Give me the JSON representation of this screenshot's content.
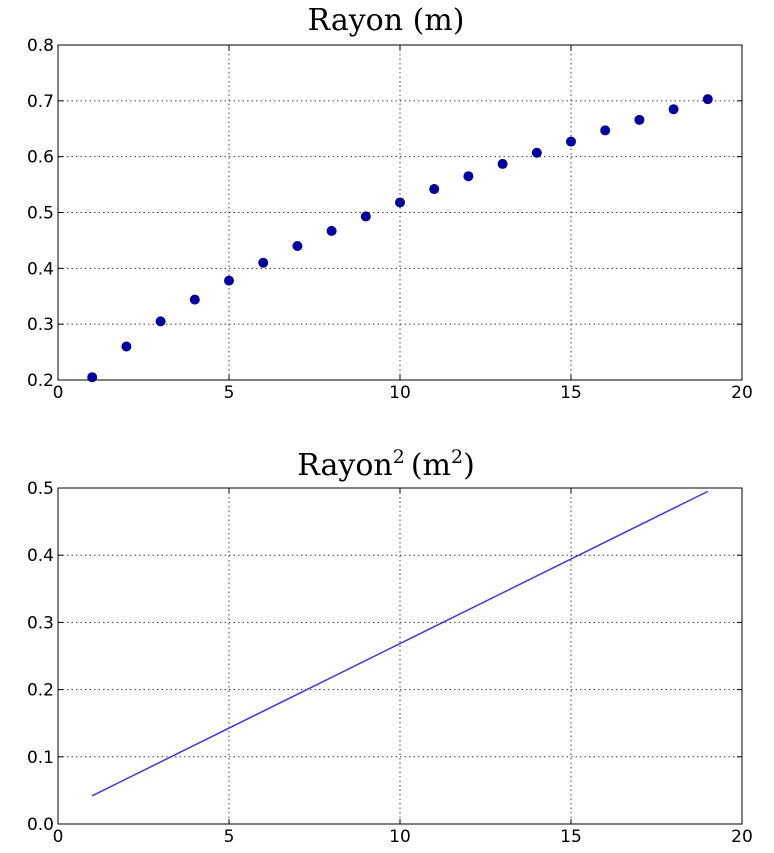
{
  "chart_data": [
    {
      "type": "scatter",
      "title": "Rayon (m)",
      "xlim": [
        0,
        20
      ],
      "ylim": [
        0.2,
        0.8
      ],
      "xticks": [
        "0",
        "5",
        "10",
        "15",
        "20"
      ],
      "yticks": [
        "0.2",
        "0.3",
        "0.4",
        "0.5",
        "0.6",
        "0.7",
        "0.8"
      ],
      "grid": true,
      "marker_color": "#00009e",
      "series": [
        {
          "x": [
            1,
            2,
            3,
            4,
            5,
            6,
            7,
            8,
            9,
            10,
            11,
            12,
            13,
            14,
            15,
            16,
            17,
            18,
            19
          ],
          "values": [
            0.205,
            0.26,
            0.305,
            0.344,
            0.378,
            0.41,
            0.44,
            0.467,
            0.493,
            0.518,
            0.542,
            0.565,
            0.587,
            0.607,
            0.627,
            0.647,
            0.666,
            0.685,
            0.703
          ]
        }
      ]
    },
    {
      "type": "line",
      "title": "Rayon",
      "title_sup": "2",
      "title_unit": "(m",
      "title_unit_sup": "2",
      "title_close": ")",
      "xlim": [
        0,
        20
      ],
      "ylim": [
        0.0,
        0.5
      ],
      "xticks": [
        "0",
        "5",
        "10",
        "15",
        "20"
      ],
      "yticks": [
        "0.0",
        "0.1",
        "0.2",
        "0.3",
        "0.4",
        "0.5"
      ],
      "grid": true,
      "line_color": "#3a3ad6",
      "series": [
        {
          "x": [
            1,
            19
          ],
          "values": [
            0.042,
            0.495
          ]
        }
      ]
    }
  ]
}
